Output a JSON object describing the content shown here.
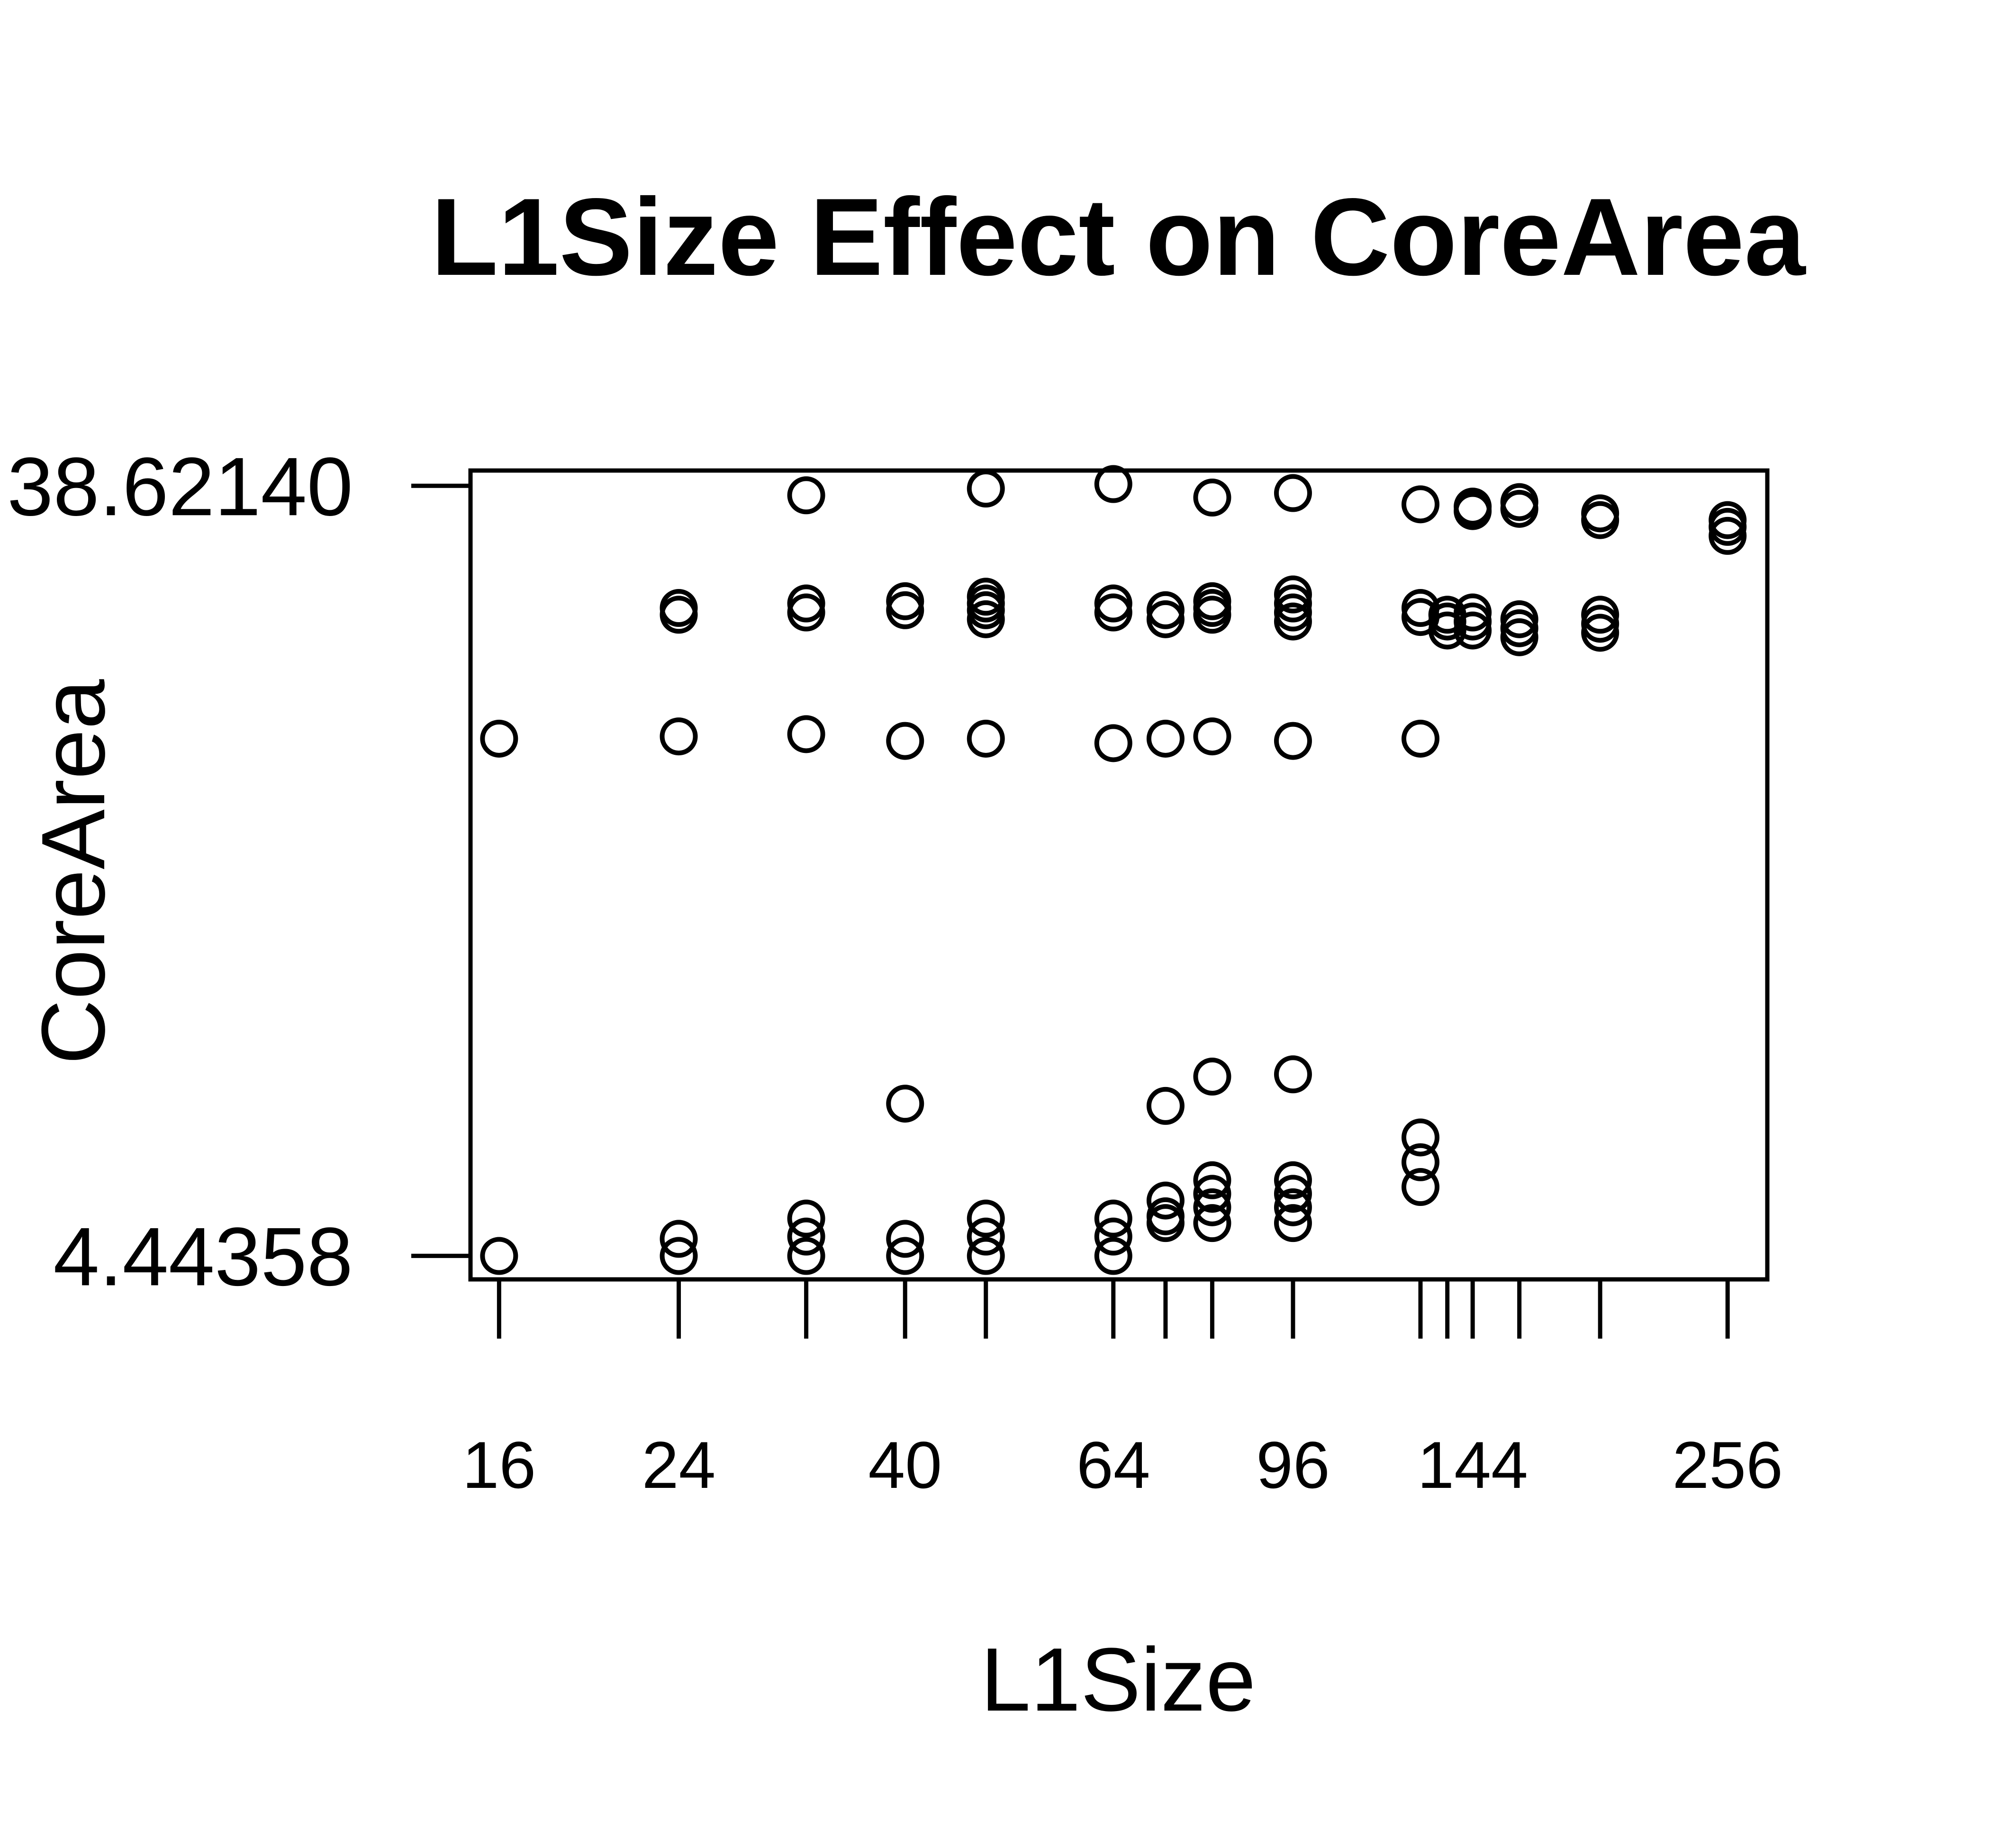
{
  "chart_data": {
    "type": "scatter",
    "title": "L1Size Effect on CoreArea",
    "xlabel": "L1Size",
    "ylabel": "CoreArea",
    "x_scale": "log",
    "xlim": [
      15,
      280
    ],
    "ylim": [
      3.4,
      39.3
    ],
    "x_tick_values": [
      16,
      24,
      32,
      40,
      48,
      64,
      72,
      80,
      96,
      128,
      136,
      144,
      160,
      192,
      256
    ],
    "x_tick_labels": [
      {
        "value": 16,
        "label": "16"
      },
      {
        "value": 24,
        "label": "24"
      },
      {
        "value": 40,
        "label": "40"
      },
      {
        "value": 64,
        "label": "64"
      },
      {
        "value": 96,
        "label": "96"
      },
      {
        "value": 144,
        "label": "144"
      },
      {
        "value": 256,
        "label": "256"
      }
    ],
    "y_tick_labels": [
      {
        "value": 38.6214,
        "label": "38.62140"
      },
      {
        "value": 4.44358,
        "label": "4.44358"
      }
    ],
    "grid": false,
    "legend": "none",
    "points": [
      {
        "x": 16,
        "y": 27.4
      },
      {
        "x": 16,
        "y": 4.44
      },
      {
        "x": 24,
        "y": 27.5
      },
      {
        "x": 24,
        "y": 32.9
      },
      {
        "x": 24,
        "y": 33.2
      },
      {
        "x": 24,
        "y": 4.44
      },
      {
        "x": 24,
        "y": 5.2
      },
      {
        "x": 32,
        "y": 38.2
      },
      {
        "x": 32,
        "y": 27.6
      },
      {
        "x": 32,
        "y": 33.0
      },
      {
        "x": 32,
        "y": 33.4
      },
      {
        "x": 32,
        "y": 4.44
      },
      {
        "x": 32,
        "y": 5.3
      },
      {
        "x": 32,
        "y": 6.1
      },
      {
        "x": 40,
        "y": 27.3
      },
      {
        "x": 40,
        "y": 33.1
      },
      {
        "x": 40,
        "y": 33.5
      },
      {
        "x": 40,
        "y": 11.2
      },
      {
        "x": 40,
        "y": 4.44
      },
      {
        "x": 40,
        "y": 5.2
      },
      {
        "x": 48,
        "y": 38.5
      },
      {
        "x": 48,
        "y": 27.4
      },
      {
        "x": 48,
        "y": 32.7
      },
      {
        "x": 48,
        "y": 33.1
      },
      {
        "x": 48,
        "y": 33.4
      },
      {
        "x": 48,
        "y": 33.7
      },
      {
        "x": 48,
        "y": 4.44
      },
      {
        "x": 48,
        "y": 5.3
      },
      {
        "x": 48,
        "y": 6.1
      },
      {
        "x": 64,
        "y": 38.7
      },
      {
        "x": 64,
        "y": 27.2
      },
      {
        "x": 64,
        "y": 33.0
      },
      {
        "x": 64,
        "y": 33.4
      },
      {
        "x": 64,
        "y": 4.44
      },
      {
        "x": 64,
        "y": 5.3
      },
      {
        "x": 64,
        "y": 6.1
      },
      {
        "x": 72,
        "y": 27.4
      },
      {
        "x": 72,
        "y": 32.7
      },
      {
        "x": 72,
        "y": 33.1
      },
      {
        "x": 72,
        "y": 11.1
      },
      {
        "x": 72,
        "y": 6.9
      },
      {
        "x": 72,
        "y": 6.2
      },
      {
        "x": 72,
        "y": 5.9
      },
      {
        "x": 80,
        "y": 38.1
      },
      {
        "x": 80,
        "y": 27.5
      },
      {
        "x": 80,
        "y": 32.9
      },
      {
        "x": 80,
        "y": 33.2
      },
      {
        "x": 80,
        "y": 33.5
      },
      {
        "x": 80,
        "y": 12.4
      },
      {
        "x": 80,
        "y": 7.8
      },
      {
        "x": 80,
        "y": 7.2
      },
      {
        "x": 80,
        "y": 6.6
      },
      {
        "x": 80,
        "y": 5.9
      },
      {
        "x": 96,
        "y": 38.3
      },
      {
        "x": 96,
        "y": 27.3
      },
      {
        "x": 96,
        "y": 32.6
      },
      {
        "x": 96,
        "y": 33.0
      },
      {
        "x": 96,
        "y": 33.4
      },
      {
        "x": 96,
        "y": 33.8
      },
      {
        "x": 96,
        "y": 12.5
      },
      {
        "x": 96,
        "y": 7.8
      },
      {
        "x": 96,
        "y": 7.2
      },
      {
        "x": 96,
        "y": 6.6
      },
      {
        "x": 96,
        "y": 5.9
      },
      {
        "x": 128,
        "y": 37.8
      },
      {
        "x": 128,
        "y": 27.4
      },
      {
        "x": 128,
        "y": 32.8
      },
      {
        "x": 128,
        "y": 33.2
      },
      {
        "x": 128,
        "y": 9.7
      },
      {
        "x": 128,
        "y": 8.6
      },
      {
        "x": 128,
        "y": 7.5
      },
      {
        "x": 136,
        "y": 32.2
      },
      {
        "x": 136,
        "y": 32.6
      },
      {
        "x": 136,
        "y": 32.9
      },
      {
        "x": 144,
        "y": 37.5
      },
      {
        "x": 144,
        "y": 37.7
      },
      {
        "x": 144,
        "y": 32.2
      },
      {
        "x": 144,
        "y": 32.6
      },
      {
        "x": 144,
        "y": 33.0
      },
      {
        "x": 160,
        "y": 37.6
      },
      {
        "x": 160,
        "y": 37.9
      },
      {
        "x": 160,
        "y": 31.9
      },
      {
        "x": 160,
        "y": 32.3
      },
      {
        "x": 160,
        "y": 32.7
      },
      {
        "x": 192,
        "y": 37.1
      },
      {
        "x": 192,
        "y": 37.4
      },
      {
        "x": 192,
        "y": 32.1
      },
      {
        "x": 192,
        "y": 32.5
      },
      {
        "x": 192,
        "y": 32.9
      },
      {
        "x": 256,
        "y": 36.4
      },
      {
        "x": 256,
        "y": 36.8
      },
      {
        "x": 256,
        "y": 37.1
      }
    ]
  }
}
